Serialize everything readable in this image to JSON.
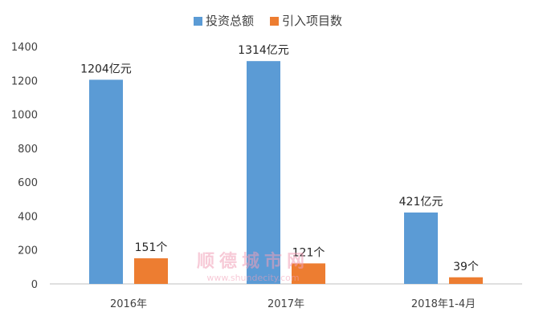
{
  "chart_data": {
    "type": "bar",
    "categories": [
      "2016年",
      "2017年",
      "2018年1-4月"
    ],
    "series": [
      {
        "name": "投资总额",
        "values": [
          1204,
          1314,
          421
        ],
        "labels": [
          "1204亿元",
          "1314亿元",
          "421亿元"
        ]
      },
      {
        "name": "引入项目数",
        "values": [
          151,
          121,
          39
        ],
        "labels": [
          "151个",
          "121个",
          "39个"
        ]
      }
    ],
    "yticks": [
      "0",
      "200",
      "400",
      "600",
      "800",
      "1000",
      "1200",
      "1400"
    ],
    "ylim": [
      0,
      1400
    ],
    "grid": false,
    "legend_position": "top-center"
  },
  "colors": {
    "series": [
      "#5b9bd5",
      "#ed7d31"
    ],
    "axis": "#bfbfbf",
    "text": "#404040"
  },
  "watermark": {
    "text": "顺德城市网",
    "url": "www.shundecity.com"
  }
}
